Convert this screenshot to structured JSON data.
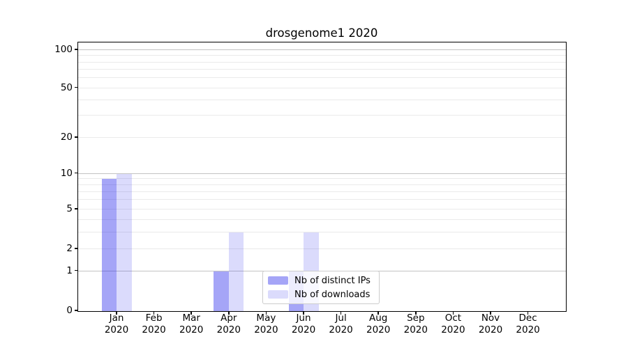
{
  "chart_data": {
    "type": "bar",
    "title": "drosgenome1 2020",
    "categories": [
      "Jan",
      "Feb",
      "Mar",
      "Apr",
      "May",
      "Jun",
      "Jul",
      "Aug",
      "Sep",
      "Oct",
      "Nov",
      "Dec"
    ],
    "x_tick_year_line": "2020",
    "series": [
      {
        "name": "Nb of distinct IPs",
        "color": "rgba(30,30,235,0.40)",
        "values": [
          9,
          0,
          0,
          1,
          0,
          1,
          0,
          0,
          0,
          0,
          0,
          0
        ]
      },
      {
        "name": "Nb of downloads",
        "color": "rgba(30,30,235,0.16)",
        "values": [
          10,
          0,
          0,
          3,
          0,
          3,
          0,
          0,
          0,
          0,
          0,
          0
        ]
      }
    ],
    "yscale": "log above 1, linear 0-1",
    "ylim": [
      0,
      114
    ],
    "y_ticks": [
      0,
      1,
      2,
      5,
      10,
      20,
      50,
      100
    ],
    "y_major_gridlines": [
      1,
      10,
      100
    ],
    "y_minor_gridlines": [
      2,
      3,
      4,
      5,
      6,
      7,
      8,
      9,
      20,
      30,
      40,
      50,
      60,
      70,
      80,
      90
    ],
    "grid": "horizontal, on",
    "legend_position": "inside lower-center",
    "xlabel": "",
    "ylabel": ""
  },
  "colors": {
    "background": "#ffffff",
    "axis": "#000000",
    "major_gridline": "#c3c3c3",
    "minor_gridline": "#eaeaea",
    "legend_border": "#cccccc",
    "text": "#000000"
  }
}
